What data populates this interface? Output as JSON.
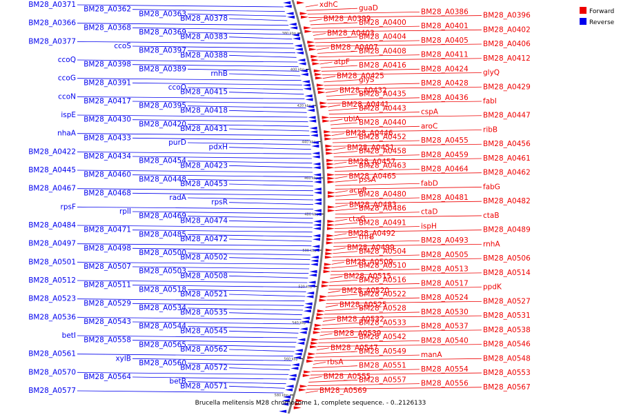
{
  "caption": "Brucella melitensis M28 chromosome 1, complete sequence. - 0..2126133",
  "legend": [
    {
      "label": "Forward",
      "color": "#ee0000"
    },
    {
      "label": "Reverse",
      "color": "#0000ee"
    }
  ],
  "ticks": [
    "380 kbp",
    "400 kbp",
    "420 kbp",
    "440 kbp",
    "460 kbp",
    "480 kbp",
    "500 kbp",
    "520 kbp",
    "540 kbp",
    "560 kbp",
    "580 kbp"
  ],
  "forward_labels": [
    "xdhC",
    "guaD",
    "BM28_A0386",
    "BM28_A0396",
    "BM28_A0399",
    "BM28_A0400",
    "BM28_A0401",
    "BM28_A0402",
    "BM28_A0403",
    "BM28_A0404",
    "BM28_A0405",
    "BM28_A0406",
    "BM28_A0407",
    "BM28_A0408",
    "BM28_A0411",
    "BM28_A0412",
    "atpF",
    "BM28_A0416",
    "BM28_A0424",
    "glyQ",
    "BM28_A0425",
    "glyS",
    "BM28_A0428",
    "BM28_A0429",
    "BM28_A0432",
    "BM28_A0435",
    "BM28_A0436",
    "fabI",
    "BM28_A0441",
    "BM28_A0443",
    "cspA",
    "BM28_A0447",
    "ubiA",
    "BM28_A0440",
    "aroC",
    "ribB",
    "BM28_A0446",
    "BM28_A0452",
    "BM28_A0455",
    "BM28_A0456",
    "BM28_A0451",
    "BM28_A0458",
    "BM28_A0459",
    "BM28_A0461",
    "BM28_A0457",
    "BM28_A0463",
    "BM28_A0464",
    "BM28_A0462",
    "BM28_A0465",
    "pssA",
    "fabD",
    "fabG",
    "acpP",
    "BM28_A0480",
    "BM28_A0481",
    "BM28_A0482",
    "BM28_A0483",
    "BM28_A0486",
    "ctaD",
    "ctaB",
    "ctaG",
    "BM28_A0491",
    "ispH",
    "BM28_A0489",
    "BM28_A0492",
    "thrB",
    "BM28_A0493",
    "rnhA",
    "BM28_A0499",
    "BM28_A0504",
    "BM28_A0505",
    "BM28_A0506",
    "BM28_A0509",
    "BM28_A0510",
    "BM28_A0513",
    "BM28_A0514",
    "BM28_A0515",
    "BM28_A0516",
    "BM28_A0517",
    "ppdK",
    "BM28_A0520",
    "BM28_A0522",
    "BM28_A0524",
    "BM28_A0527",
    "BM28_A0525",
    "BM28_A0528",
    "BM28_A0530",
    "BM28_A0531",
    "BM28_A0532",
    "BM28_A0533",
    "BM28_A0537",
    "BM28_A0538",
    "BM28_A0539",
    "BM28_A0542",
    "BM28_A0540",
    "BM28_A0546",
    "BM28_A0547",
    "BM28_A0549",
    "manA",
    "BM28_A0548",
    "rbsA",
    "BM28_A0551",
    "BM28_A0554",
    "BM28_A0553",
    "BM28_A0555",
    "BM28_A0557",
    "BM28_A0556",
    "BM28_A0567",
    "BM28_A0569"
  ],
  "reverse_labels": [
    "BM28_A0371",
    "BM28_A0362",
    "BM28_A0363",
    "BM28_A0378",
    "BM28_A0366",
    "BM28_A0368",
    "BM28_A0369",
    "BM28_A0383",
    "BM28_A0377",
    "ccoS",
    "BM28_A0397",
    "BM28_A0388",
    "ccoQ",
    "BM28_A0398",
    "BM28_A0389",
    "rnhB",
    "ccoG",
    "BM28_A0391",
    "ccoO",
    "BM28_A0415",
    "ccoN",
    "BM28_A0417",
    "BM28_A0395",
    "BM28_A0418",
    "ispE",
    "BM28_A0430",
    "BM28_A0420",
    "BM28_A0431",
    "nhaA",
    "BM28_A0433",
    "purD",
    "pdxH",
    "BM28_A0422",
    "BM28_A0434",
    "BM28_A0454",
    "BM28_A0423",
    "BM28_A0445",
    "BM28_A0460",
    "BM28_A0448",
    "BM28_A0453",
    "BM28_A0467",
    "BM28_A0468",
    "radA",
    "rpsR",
    "rpsF",
    "rplI",
    "BM28_A0469",
    "BM28_A0474",
    "BM28_A0484",
    "BM28_A0471",
    "BM28_A0485",
    "BM28_A0472",
    "BM28_A0497",
    "BM28_A0498",
    "BM28_A0500",
    "BM28_A0502",
    "BM28_A0501",
    "BM28_A0507",
    "BM28_A0503",
    "BM28_A0508",
    "BM28_A0512",
    "BM28_A0511",
    "BM28_A0518",
    "BM28_A0521",
    "BM28_A0523",
    "BM28_A0529",
    "BM28_A0534",
    "BM28_A0535",
    "BM28_A0536",
    "BM28_A0543",
    "BM28_A0544",
    "BM28_A0545",
    "betI",
    "BM28_A0558",
    "BM28_A0565",
    "BM28_A0562",
    "BM28_A0561",
    "xylB",
    "BM28_A0560",
    "BM28_A0572",
    "BM28_A0570",
    "BM28_A0564",
    "betB",
    "BM28_A0571",
    "BM28_A0577"
  ]
}
